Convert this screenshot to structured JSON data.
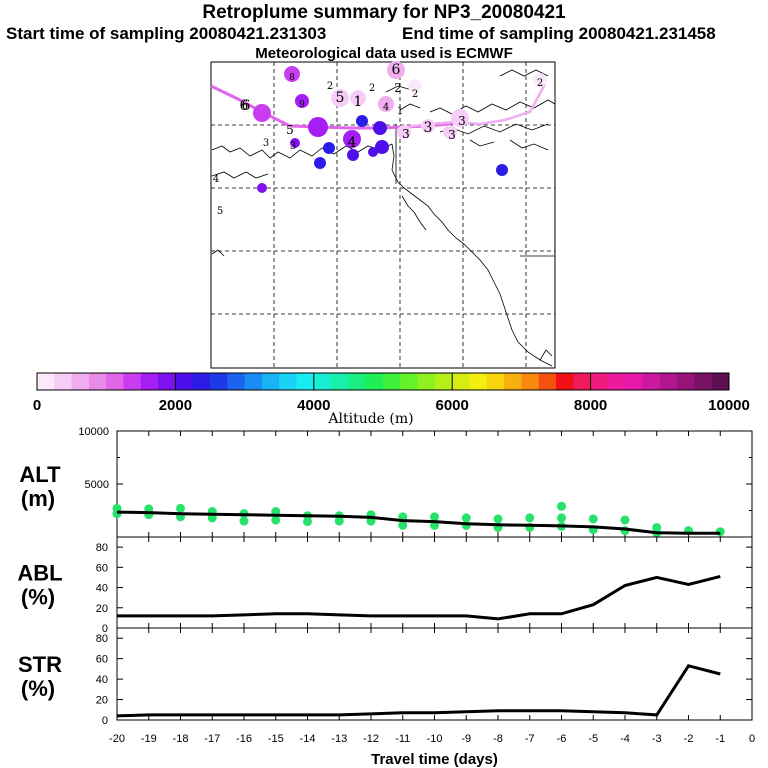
{
  "header": {
    "title": "Retroplume summary for NP3_20080421",
    "start": "Start time of sampling 20080421.231303",
    "end": "End time of sampling 20080421.231458",
    "met": "Meteorological data used is ECMWF"
  },
  "colorbar": {
    "label": "Altitude (m)",
    "ticks": [
      "0",
      "2000",
      "4000",
      "6000",
      "8000",
      "10000"
    ],
    "colors": [
      "#fbe8fb",
      "#f7cdf7",
      "#f0adf0",
      "#e88ae8",
      "#e066ea",
      "#c93cf0",
      "#a51ef4",
      "#7f10f0",
      "#4d10ea",
      "#2a1ee6",
      "#1d3ae6",
      "#1c64f0",
      "#1a8cf4",
      "#19b3f5",
      "#18d3f5",
      "#18ecf0",
      "#18efd0",
      "#18efa8",
      "#18ef80",
      "#20ee55",
      "#3ef03a",
      "#64f22a",
      "#8ef01e",
      "#b6ee18",
      "#d6ec12",
      "#f1ee10",
      "#f8d410",
      "#f8b00e",
      "#f8880e",
      "#f4500e",
      "#f01016",
      "#ee1a5a",
      "#ee1a7e",
      "#ee1a9e",
      "#e619a8",
      "#cc18a0",
      "#b0168e",
      "#941478",
      "#7a1264",
      "#5c1050"
    ]
  },
  "map": {
    "labels": [
      "6",
      "5",
      "4",
      "4",
      "5",
      "3",
      "3",
      "6",
      "5",
      "2",
      "2",
      "2",
      "1",
      "4",
      "6",
      "3",
      "3",
      "1",
      "3",
      "2",
      "2",
      "3",
      "8",
      "9"
    ]
  },
  "chart_data": [
    {
      "type": "line",
      "panel": "ALT",
      "ylabel": "ALT\n(m)",
      "ylabel_lines": [
        "ALT",
        "(m)"
      ],
      "xlim": [
        -20,
        0
      ],
      "ylim": [
        0,
        10000
      ],
      "yticks": [
        0,
        5000,
        10000
      ],
      "ytick_labels": [
        "5000",
        "10000"
      ],
      "x": [
        -20,
        -19,
        -18,
        -17,
        -16,
        -15,
        -14,
        -13,
        -12,
        -11,
        -10,
        -9,
        -8,
        -7,
        -6,
        -5,
        -4,
        -3,
        -2,
        -1
      ],
      "series": [
        {
          "name": "median altitude",
          "color": "#000000",
          "values": [
            2350,
            2300,
            2200,
            2150,
            2100,
            2050,
            2000,
            1950,
            1850,
            1550,
            1450,
            1250,
            1150,
            1100,
            1050,
            950,
            750,
            400,
            350,
            350
          ]
        }
      ],
      "scatter": {
        "color": "#26e26a",
        "x": [
          -20,
          -20,
          -19,
          -19,
          -18,
          -18,
          -17,
          -17,
          -16,
          -16,
          -15,
          -15,
          -14,
          -14,
          -13,
          -13,
          -12,
          -12,
          -11,
          -11,
          -10,
          -10,
          -9,
          -9,
          -8,
          -8,
          -7,
          -7,
          -6,
          -6,
          -6,
          -5,
          -5,
          -4,
          -4,
          -3,
          -3,
          -2,
          -1
        ],
        "values": [
          2700,
          2200,
          2650,
          2100,
          2700,
          1900,
          2400,
          1800,
          2200,
          1500,
          2400,
          1600,
          2000,
          1450,
          2000,
          1500,
          2100,
          1500,
          1900,
          1100,
          1900,
          1100,
          1800,
          1100,
          1700,
          900,
          1800,
          900,
          1800,
          1000,
          2900,
          1700,
          700,
          1600,
          600,
          900,
          400,
          600,
          500
        ]
      }
    },
    {
      "type": "line",
      "panel": "ABL",
      "ylabel_lines": [
        "ABL",
        "(%)"
      ],
      "xlim": [
        -20,
        0
      ],
      "ylim": [
        0,
        90
      ],
      "yticks": [
        0,
        20,
        40,
        60,
        80
      ],
      "ytick_labels": [
        "0",
        "20",
        "40",
        "60",
        "80"
      ],
      "x": [
        -20,
        -19,
        -18,
        -17,
        -16,
        -15,
        -14,
        -13,
        -12,
        -11,
        -10,
        -9,
        -8,
        -7,
        -6,
        -5,
        -4,
        -3,
        -2,
        -1
      ],
      "series": [
        {
          "name": "ABL fraction",
          "color": "#000000",
          "values": [
            12,
            12,
            12,
            12,
            13,
            14,
            14,
            13,
            12,
            12,
            12,
            12,
            9,
            14,
            14,
            23,
            42,
            50,
            43,
            51
          ]
        }
      ]
    },
    {
      "type": "line",
      "panel": "STR",
      "ylabel_lines": [
        "STR",
        "(%)"
      ],
      "xlim": [
        -20,
        0
      ],
      "ylim": [
        0,
        90
      ],
      "yticks": [
        0,
        20,
        40,
        60,
        80
      ],
      "ytick_labels": [
        "0",
        "20",
        "40",
        "60",
        "80"
      ],
      "x": [
        -20,
        -19,
        -18,
        -17,
        -16,
        -15,
        -14,
        -13,
        -12,
        -11,
        -10,
        -9,
        -8,
        -7,
        -6,
        -5,
        -4,
        -3,
        -2,
        -1
      ],
      "series": [
        {
          "name": "STR fraction",
          "color": "#000000",
          "values": [
            4,
            5,
            5,
            5,
            5,
            5,
            5,
            5,
            6,
            7,
            7,
            8,
            9,
            9,
            9,
            8,
            7,
            5,
            53,
            45
          ]
        }
      ],
      "xlabel": "Travel time (days)",
      "xtick_labels": [
        "-20",
        "-19",
        "-18",
        "-17",
        "-16",
        "-15",
        "-14",
        "-13",
        "-12",
        "-11",
        "-10",
        "-9",
        "-8",
        "-7",
        "-6",
        "-5",
        "-4",
        "-3",
        "-2",
        "-1",
        "0"
      ]
    }
  ]
}
